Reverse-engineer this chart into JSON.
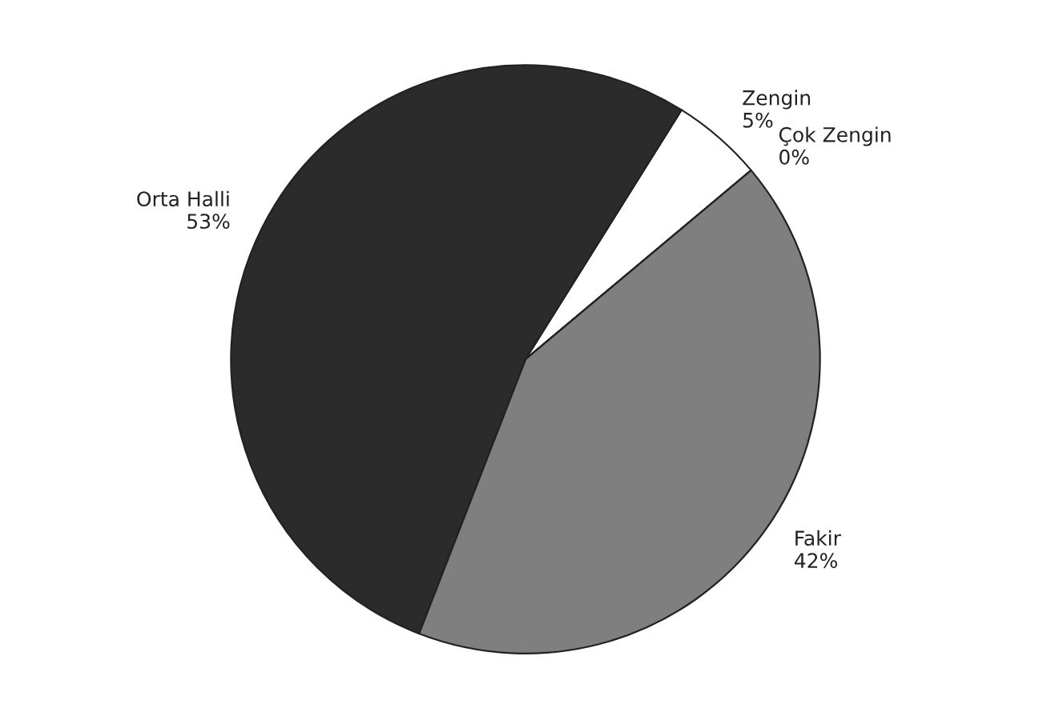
{
  "chart_data": {
    "type": "pie",
    "categories": [
      "Zengin",
      "Çok Zengin",
      "Fakir",
      "Orta Halli"
    ],
    "values": [
      5,
      0,
      42,
      53
    ],
    "value_labels": [
      "5%",
      "0%",
      "42%",
      "53%"
    ],
    "colors": [
      "#ffffff",
      "#d9d9d9",
      "#7f7f7f",
      "#2b2b2b"
    ]
  }
}
